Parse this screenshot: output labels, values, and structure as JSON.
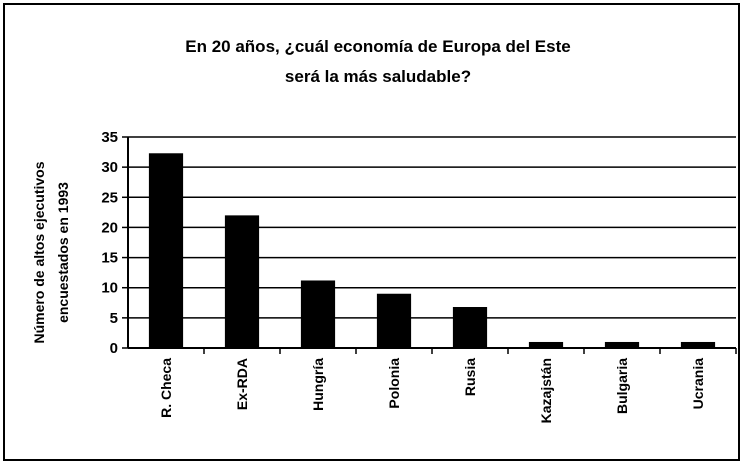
{
  "chart_data": {
    "type": "bar",
    "title_lines": [
      "En 20 años, ¿cuál economía de Europa del Este",
      "será la más saludable?"
    ],
    "ylabel_lines": [
      "Número de altos ejecutivos",
      "encuestados en 1993"
    ],
    "xlabel": "",
    "categories": [
      "R. Checa",
      "Ex-RDA",
      "Hungría",
      "Polonia",
      "Rusia",
      "Kazajstán",
      "Bulgaria",
      "Ucrania"
    ],
    "values": [
      32.3,
      22,
      11.2,
      9,
      6.8,
      1,
      1,
      1
    ],
    "ylim": [
      0,
      35
    ],
    "yticks": [
      0,
      5,
      10,
      15,
      20,
      25,
      30,
      35
    ],
    "grid": true,
    "legend": "none",
    "bar_color": "#000000"
  }
}
